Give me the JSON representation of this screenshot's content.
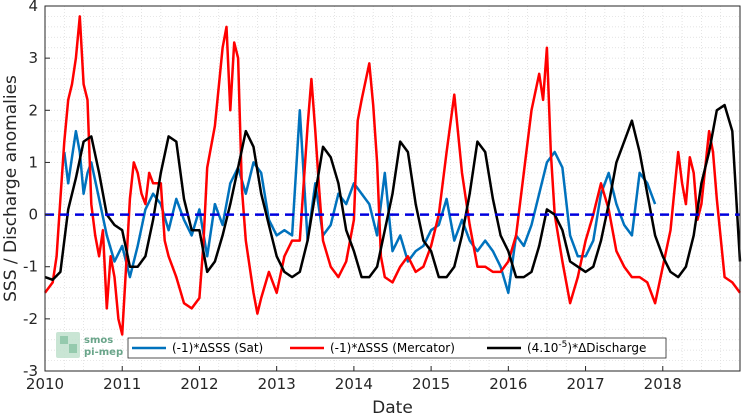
{
  "chart_data": {
    "type": "line",
    "title": "",
    "xlabel": "Date",
    "ylabel": "SSS / Discharge anomalies",
    "xlim": [
      2010.0,
      2019.0
    ],
    "ylim": [
      -3,
      4
    ],
    "x_ticks": [
      "2010",
      "2011",
      "2012",
      "2013",
      "2014",
      "2015",
      "2016",
      "2017",
      "2018"
    ],
    "y_ticks": [
      "-3",
      "-2",
      "-1",
      "0",
      "1",
      "2",
      "3",
      "4"
    ],
    "grid": "minor dotted",
    "legend_position": "bottom",
    "reference_line": {
      "y": 0,
      "color": "#0000dd",
      "style": "dashed"
    },
    "logo_text": [
      "smos",
      "pi-mep"
    ],
    "series": [
      {
        "name": "(-1)*ΔSSS (Sat)",
        "legend_label": "(-1)*ΔSSS (Sat)",
        "color": "#0072bd",
        "x": [
          2010.25,
          2010.3,
          2010.35,
          2010.4,
          2010.45,
          2010.5,
          2010.55,
          2010.6,
          2010.7,
          2010.8,
          2010.9,
          2011.0,
          2011.1,
          2011.2,
          2011.3,
          2011.4,
          2011.5,
          2011.6,
          2011.7,
          2011.8,
          2011.9,
          2012.0,
          2012.1,
          2012.2,
          2012.3,
          2012.4,
          2012.5,
          2012.6,
          2012.7,
          2012.8,
          2012.9,
          2013.0,
          2013.1,
          2013.2,
          2013.3,
          2013.4,
          2013.5,
          2013.6,
          2013.7,
          2013.8,
          2013.9,
          2014.0,
          2014.1,
          2014.2,
          2014.3,
          2014.4,
          2014.5,
          2014.6,
          2014.7,
          2014.8,
          2014.9,
          2015.0,
          2015.1,
          2015.2,
          2015.3,
          2015.4,
          2015.5,
          2015.6,
          2015.7,
          2015.8,
          2015.9,
          2016.0,
          2016.1,
          2016.2,
          2016.3,
          2016.4,
          2016.5,
          2016.6,
          2016.7,
          2016.8,
          2016.9,
          2017.0,
          2017.1,
          2017.2,
          2017.3,
          2017.4,
          2017.5,
          2017.6,
          2017.7,
          2017.8,
          2017.9
        ],
        "y": [
          1.2,
          0.6,
          1.1,
          1.6,
          1.2,
          0.4,
          0.8,
          1.0,
          0.3,
          -0.4,
          -0.9,
          -0.6,
          -1.2,
          -0.6,
          0.1,
          0.4,
          0.2,
          -0.3,
          0.3,
          -0.1,
          -0.4,
          0.1,
          -0.8,
          0.2,
          -0.2,
          0.6,
          0.9,
          0.4,
          1.0,
          0.8,
          -0.1,
          -0.4,
          -0.3,
          -0.4,
          2.0,
          -0.5,
          0.6,
          -0.4,
          -0.2,
          0.4,
          0.2,
          0.6,
          0.4,
          0.2,
          -0.4,
          0.8,
          -0.7,
          -0.4,
          -0.9,
          -0.7,
          -0.6,
          -0.3,
          -0.2,
          0.3,
          -0.5,
          -0.1,
          -0.5,
          -0.7,
          -0.5,
          -0.7,
          -1.0,
          -1.5,
          -0.4,
          -0.6,
          -0.2,
          0.4,
          1.0,
          1.2,
          0.9,
          -0.4,
          -0.8,
          -0.8,
          -0.5,
          0.4,
          0.8,
          0.2,
          -0.2,
          -0.4,
          0.8,
          0.6,
          0.2
        ]
      },
      {
        "name": "(-1)*ΔSSS (Mercator)",
        "legend_label": "(-1)*ΔSSS (Mercator)",
        "color": "#ff0000",
        "x": [
          2010.0,
          2010.1,
          2010.15,
          2010.2,
          2010.25,
          2010.3,
          2010.35,
          2010.4,
          2010.45,
          2010.5,
          2010.55,
          2010.6,
          2010.65,
          2010.7,
          2010.75,
          2010.8,
          2010.85,
          2010.9,
          2010.95,
          2011.0,
          2011.05,
          2011.1,
          2011.15,
          2011.2,
          2011.25,
          2011.3,
          2011.35,
          2011.4,
          2011.5,
          2011.55,
          2011.6,
          2011.7,
          2011.8,
          2011.9,
          2012.0,
          2012.05,
          2012.1,
          2012.2,
          2012.3,
          2012.35,
          2012.4,
          2012.45,
          2012.5,
          2012.55,
          2012.6,
          2012.7,
          2012.75,
          2012.8,
          2012.9,
          2013.0,
          2013.1,
          2013.2,
          2013.3,
          2013.4,
          2013.45,
          2013.5,
          2013.55,
          2013.6,
          2013.7,
          2013.8,
          2013.9,
          2014.0,
          2014.05,
          2014.1,
          2014.2,
          2014.25,
          2014.3,
          2014.35,
          2014.4,
          2014.5,
          2014.6,
          2014.7,
          2014.8,
          2014.9,
          2015.0,
          2015.1,
          2015.2,
          2015.3,
          2015.4,
          2015.5,
          2015.6,
          2015.7,
          2015.8,
          2015.9,
          2016.0,
          2016.1,
          2016.2,
          2016.3,
          2016.4,
          2016.45,
          2016.5,
          2016.55,
          2016.6,
          2016.7,
          2016.8,
          2016.9,
          2017.0,
          2017.1,
          2017.2,
          2017.3,
          2017.4,
          2017.5,
          2017.6,
          2017.7,
          2017.8,
          2017.9,
          2018.0,
          2018.1,
          2018.2,
          2018.25,
          2018.3,
          2018.35,
          2018.4,
          2018.45,
          2018.5,
          2018.6,
          2018.65,
          2018.7,
          2018.8,
          2018.9,
          2019.0
        ],
        "y": [
          -1.5,
          -1.3,
          -0.8,
          0.3,
          1.4,
          2.2,
          2.5,
          3.0,
          3.8,
          2.5,
          2.2,
          0.2,
          -0.4,
          -0.8,
          -0.3,
          -1.8,
          -0.8,
          -1.2,
          -2.0,
          -2.3,
          -1.0,
          0.3,
          1.0,
          0.8,
          0.4,
          0.2,
          0.8,
          0.6,
          0.6,
          -0.5,
          -0.8,
          -1.2,
          -1.7,
          -1.8,
          -1.6,
          -0.6,
          0.9,
          1.7,
          3.2,
          3.6,
          2.0,
          3.3,
          3.0,
          0.5,
          -0.5,
          -1.5,
          -1.9,
          -1.6,
          -1.1,
          -1.5,
          -0.8,
          -0.5,
          -0.5,
          1.7,
          2.6,
          1.6,
          0.5,
          -0.5,
          -1.0,
          -1.2,
          -0.9,
          -0.1,
          1.8,
          2.2,
          2.9,
          2.1,
          1.0,
          -0.8,
          -1.2,
          -1.3,
          -1.0,
          -0.8,
          -1.1,
          -1.0,
          -0.6,
          0.0,
          1.2,
          2.3,
          0.8,
          -0.2,
          -1.0,
          -1.0,
          -1.1,
          -1.1,
          -0.9,
          -0.4,
          0.8,
          2.0,
          2.7,
          2.2,
          3.2,
          1.2,
          0.0,
          -0.9,
          -1.7,
          -1.2,
          -0.5,
          0.0,
          0.6,
          0.1,
          -0.7,
          -1.0,
          -1.2,
          -1.2,
          -1.3,
          -1.7,
          -1.0,
          -0.3,
          1.2,
          0.6,
          0.2,
          1.1,
          0.8,
          -0.1,
          0.2,
          1.6,
          1.2,
          0.3,
          -1.2,
          -1.3,
          -1.5
        ]
      },
      {
        "name": "(4.10^-5)*ΔDischarge",
        "legend_label": "(4.10",
        "legend_sup": "-5",
        "legend_label_tail": ")*ΔDischarge",
        "color": "#000000",
        "x": [
          2010.0,
          2010.1,
          2010.2,
          2010.3,
          2010.4,
          2010.5,
          2010.6,
          2010.7,
          2010.8,
          2010.9,
          2011.0,
          2011.1,
          2011.2,
          2011.3,
          2011.4,
          2011.5,
          2011.6,
          2011.7,
          2011.8,
          2011.9,
          2012.0,
          2012.1,
          2012.2,
          2012.3,
          2012.4,
          2012.5,
          2012.6,
          2012.7,
          2012.8,
          2012.9,
          2013.0,
          2013.1,
          2013.2,
          2013.3,
          2013.4,
          2013.5,
          2013.6,
          2013.7,
          2013.8,
          2013.9,
          2014.0,
          2014.1,
          2014.2,
          2014.3,
          2014.4,
          2014.5,
          2014.6,
          2014.7,
          2014.8,
          2014.9,
          2015.0,
          2015.1,
          2015.2,
          2015.3,
          2015.4,
          2015.5,
          2015.6,
          2015.7,
          2015.8,
          2015.9,
          2016.0,
          2016.1,
          2016.2,
          2016.3,
          2016.4,
          2016.5,
          2016.6,
          2016.7,
          2016.8,
          2016.9,
          2017.0,
          2017.1,
          2017.2,
          2017.3,
          2017.4,
          2017.5,
          2017.6,
          2017.7,
          2017.8,
          2017.9,
          2018.0,
          2018.1,
          2018.2,
          2018.3,
          2018.4,
          2018.5,
          2018.6,
          2018.7,
          2018.8,
          2018.9,
          2019.0
        ],
        "y": [
          -1.2,
          -1.25,
          -1.1,
          0.1,
          0.7,
          1.4,
          1.5,
          0.8,
          0.0,
          -0.2,
          -0.3,
          -1.0,
          -1.0,
          -0.8,
          -0.1,
          0.8,
          1.5,
          1.4,
          0.3,
          -0.3,
          -0.3,
          -1.1,
          -0.9,
          -0.4,
          0.2,
          0.9,
          1.6,
          1.3,
          0.4,
          -0.2,
          -0.8,
          -1.1,
          -1.2,
          -1.1,
          -0.5,
          0.4,
          1.3,
          1.1,
          0.6,
          -0.3,
          -0.7,
          -1.2,
          -1.2,
          -1.0,
          -0.3,
          0.4,
          1.4,
          1.2,
          0.2,
          -0.5,
          -0.7,
          -1.2,
          -1.2,
          -1.0,
          -0.4,
          0.4,
          1.4,
          1.2,
          0.3,
          -0.4,
          -0.7,
          -1.2,
          -1.2,
          -1.1,
          -0.6,
          0.1,
          0.0,
          -0.3,
          -0.9,
          -1.0,
          -1.1,
          -1.0,
          -0.5,
          0.2,
          1.0,
          1.4,
          1.8,
          1.2,
          0.4,
          -0.4,
          -0.8,
          -1.1,
          -1.2,
          -1.0,
          -0.4,
          0.6,
          1.2,
          2.0,
          2.1,
          1.6,
          -0.9
        ]
      }
    ]
  }
}
